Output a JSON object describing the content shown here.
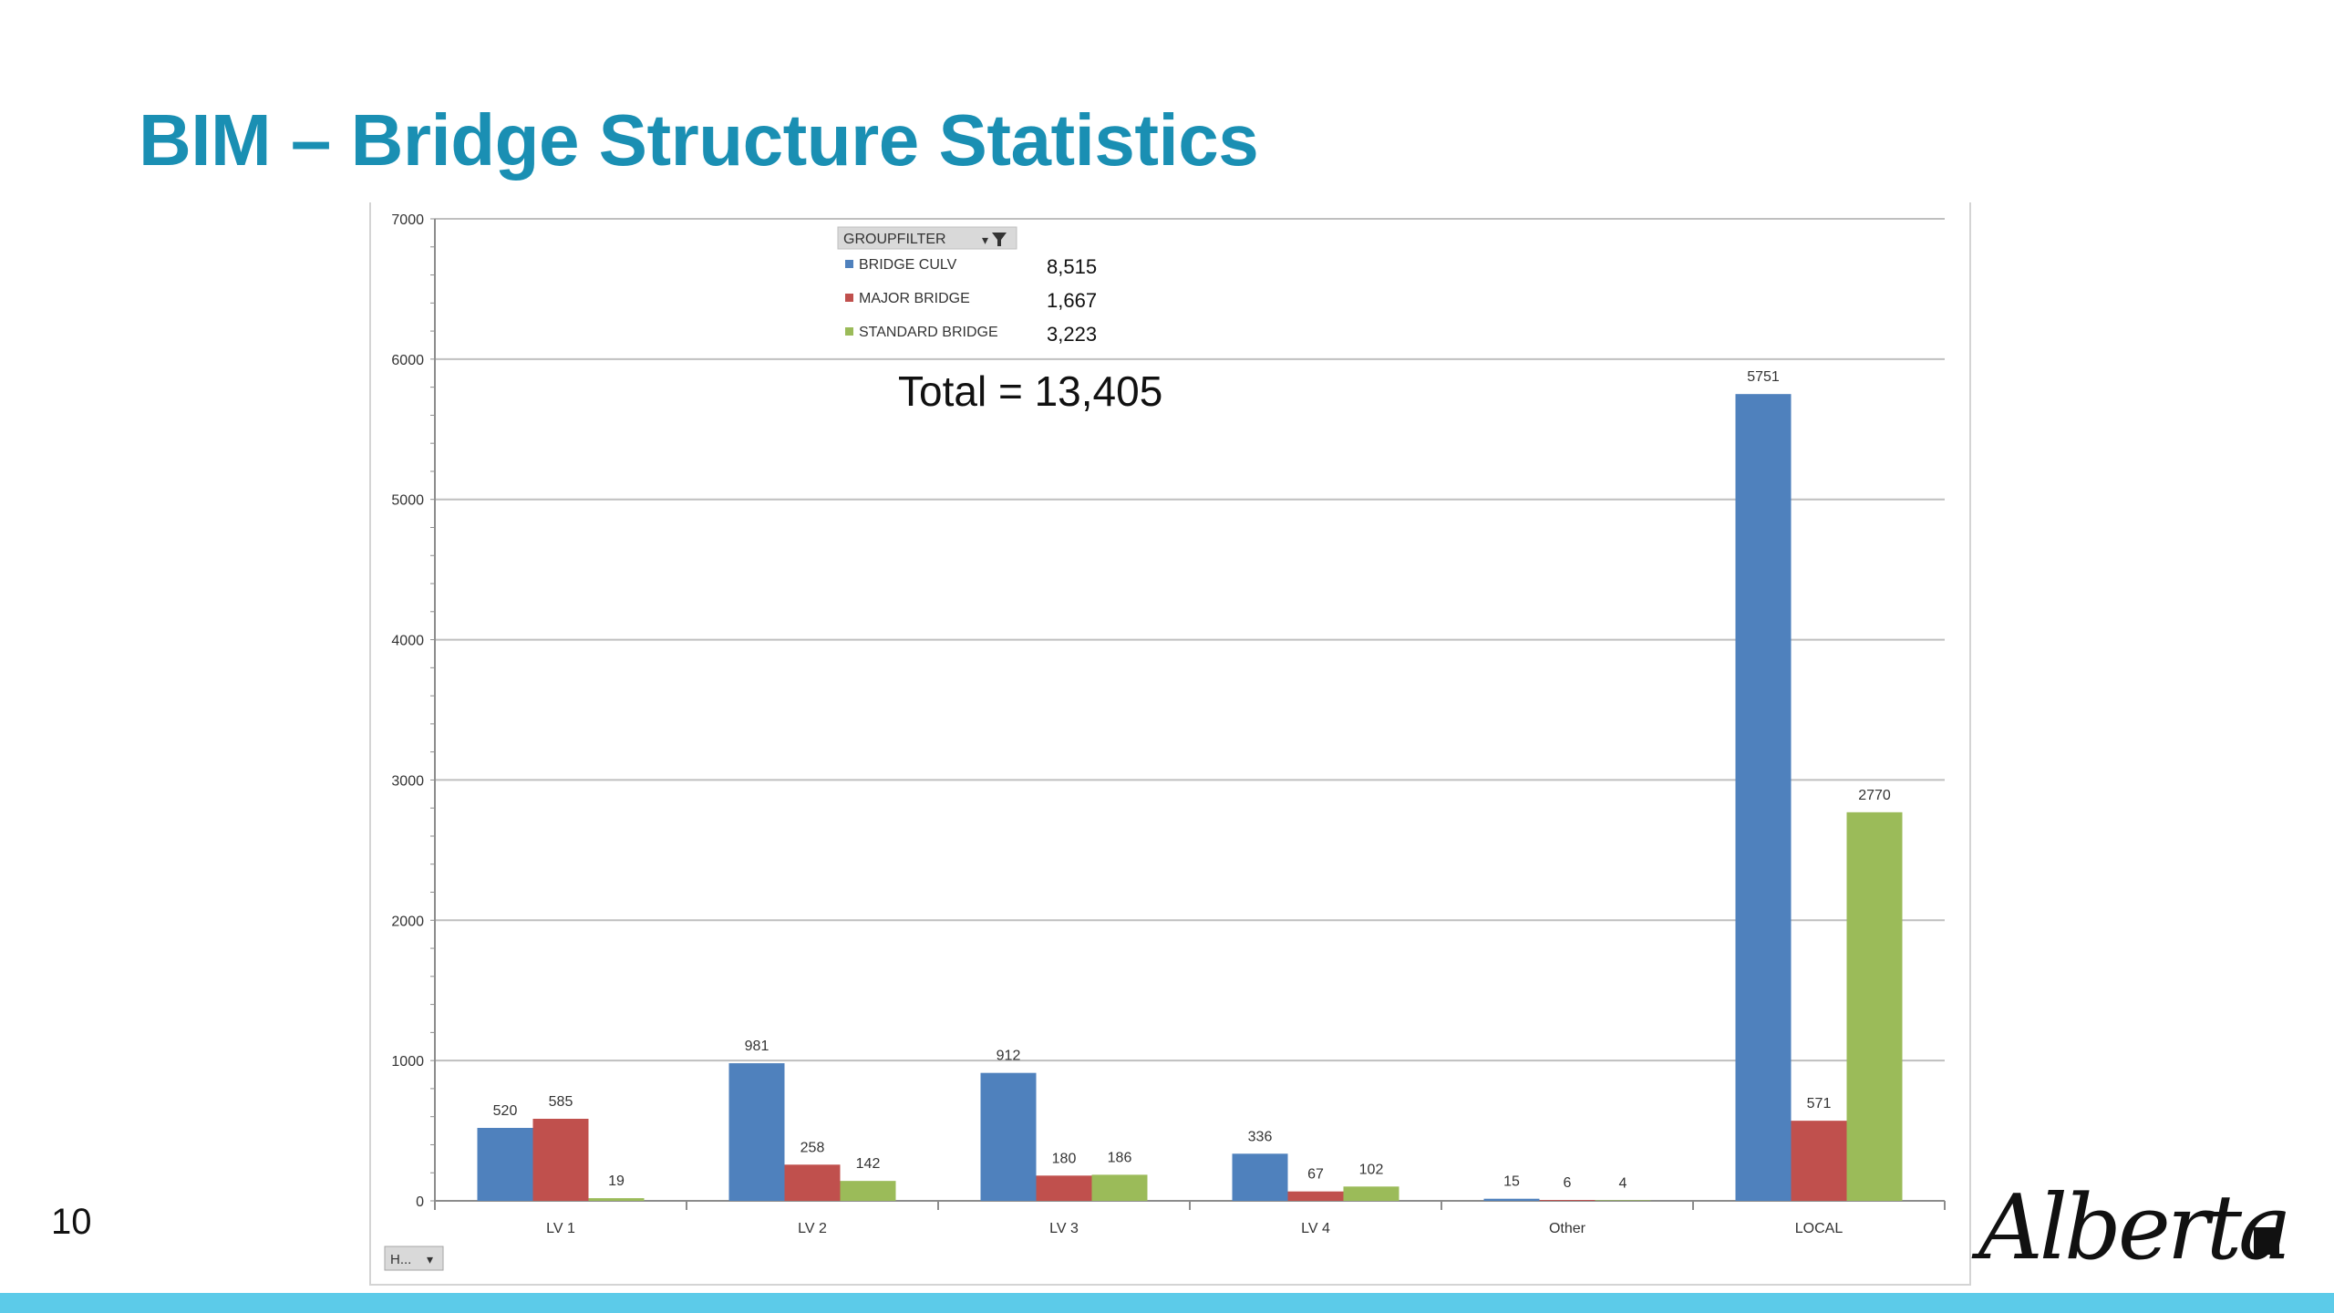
{
  "slide": {
    "title": "BIM – Bridge Structure Statistics",
    "page_number": "10",
    "logo_text": "Alberta"
  },
  "colors": {
    "title": "#1a8fb3",
    "bridge_culv": "#4f81bd",
    "major_bridge": "#c0504d",
    "standard_bridge": "#9bbb59",
    "bottom_bar": "#5ccbe9"
  },
  "chart_data": {
    "type": "bar",
    "categories": [
      "LV 1",
      "LV 2",
      "LV 3",
      "LV 4",
      "Other",
      "LOCAL"
    ],
    "series": [
      {
        "name": "BRIDGE CULV",
        "values": [
          520,
          981,
          912,
          336,
          15,
          5751
        ],
        "total": "8,515",
        "color": "#4f81bd"
      },
      {
        "name": "MAJOR BRIDGE",
        "values": [
          585,
          258,
          180,
          67,
          6,
          571
        ],
        "total": "1,667",
        "color": "#c0504d"
      },
      {
        "name": "STANDARD BRIDGE",
        "values": [
          19,
          142,
          186,
          102,
          4,
          2770
        ],
        "total": "3,223",
        "color": "#9bbb59"
      }
    ],
    "ylim": [
      0,
      7000
    ],
    "yticks": [
      0,
      1000,
      2000,
      3000,
      4000,
      5000,
      6000,
      7000
    ],
    "grid": true,
    "legend_title": "GROUPFILTER",
    "legend_position": "top-center",
    "annotation": "Total = 13,405",
    "filter_button_label": "H..."
  }
}
